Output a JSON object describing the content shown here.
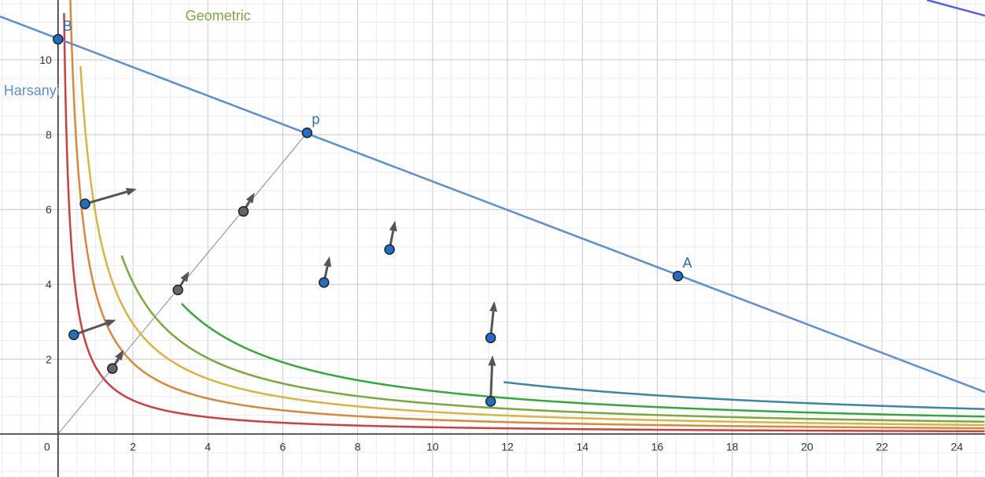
{
  "chart_data": {
    "type": "line",
    "title": "",
    "xlabel": "",
    "ylabel": "",
    "xlim": [
      -1.55,
      24.75
    ],
    "ylim": [
      -1.15,
      11.6
    ],
    "grid": true,
    "x_ticks": [
      0,
      2,
      4,
      6,
      8,
      10,
      12,
      14,
      16,
      18,
      20,
      22,
      24
    ],
    "y_ticks": [
      2,
      4,
      6,
      8,
      10
    ],
    "series": [
      {
        "name": "",
        "kind": "hyperbola",
        "k": 1.8,
        "color": "#d13e3e",
        "x_start": 0.1
      },
      {
        "name": "",
        "kind": "hyperbola",
        "k": 3.8,
        "color": "#d9883a",
        "x_start": 0.1
      },
      {
        "name": "",
        "kind": "hyperbola",
        "k": 5.9,
        "color": "#dbb43d",
        "x_start": 0.6
      },
      {
        "name": "Geometric",
        "kind": "hyperbola",
        "k": 8.1,
        "color": "#7aa93b",
        "x_start": 1.7
      },
      {
        "name": "",
        "kind": "hyperbola",
        "k": 11.5,
        "color": "#35a83c",
        "x_start": 3.3
      },
      {
        "name": "",
        "kind": "hyperbola",
        "k": 16.5,
        "color": "#3a87a6",
        "x_start": 11.9
      },
      {
        "name": "",
        "kind": "line",
        "color": "#5b5ee0",
        "p1": [
          23.2,
          11.6
        ],
        "p2": [
          24.75,
          11.18
        ]
      },
      {
        "name": "Harsanyi",
        "kind": "line",
        "color": "#5b8fcf",
        "p1": [
          -1.55,
          11.16
        ],
        "p2": [
          24.75,
          1.12
        ]
      }
    ],
    "diagonal": {
      "from": [
        0,
        0
      ],
      "to": [
        6.65,
        8.05
      ],
      "color": "#8a8a8a"
    },
    "points": [
      {
        "x": 0,
        "y": 10.55,
        "fill": "#1f6fc4",
        "label": "B"
      },
      {
        "x": 6.65,
        "y": 8.05,
        "fill": "#1f6fc4",
        "label": "p"
      },
      {
        "x": 16.55,
        "y": 4.22,
        "fill": "#1f6fc4",
        "label": "A"
      },
      {
        "x": 0.72,
        "y": 6.15,
        "fill": "#1f6fc4",
        "label": ""
      },
      {
        "x": 0.42,
        "y": 2.65,
        "fill": "#1f6fc4",
        "label": ""
      },
      {
        "x": 7.1,
        "y": 4.05,
        "fill": "#1f6fc4",
        "label": ""
      },
      {
        "x": 8.85,
        "y": 4.93,
        "fill": "#1f6fc4",
        "label": ""
      },
      {
        "x": 11.55,
        "y": 2.57,
        "fill": "#1f6fc4",
        "label": ""
      },
      {
        "x": 11.55,
        "y": 0.87,
        "fill": "#1f6fc4",
        "label": ""
      },
      {
        "x": 1.45,
        "y": 1.75,
        "fill": "#666666",
        "label": ""
      },
      {
        "x": 3.2,
        "y": 3.85,
        "fill": "#666666",
        "label": ""
      },
      {
        "x": 4.95,
        "y": 5.95,
        "fill": "#666666",
        "label": ""
      }
    ],
    "vectors": [
      {
        "from": [
          0.72,
          6.15
        ],
        "to": [
          2.1,
          6.55
        ]
      },
      {
        "from": [
          0.42,
          2.65
        ],
        "to": [
          1.55,
          3.05
        ]
      },
      {
        "from": [
          7.1,
          4.05
        ],
        "to": [
          7.25,
          4.75
        ]
      },
      {
        "from": [
          8.85,
          4.93
        ],
        "to": [
          9.0,
          5.7
        ]
      },
      {
        "from": [
          11.55,
          2.57
        ],
        "to": [
          11.65,
          3.55
        ]
      },
      {
        "from": [
          11.55,
          0.87
        ],
        "to": [
          11.6,
          2.1
        ]
      },
      {
        "from": [
          1.45,
          1.75
        ],
        "to": [
          1.75,
          2.25
        ]
      },
      {
        "from": [
          3.2,
          3.85
        ],
        "to": [
          3.5,
          4.35
        ]
      },
      {
        "from": [
          4.95,
          5.95
        ],
        "to": [
          5.25,
          6.45
        ]
      }
    ],
    "curve_labels": [
      {
        "text": "Geometric",
        "series": "Geometric",
        "x": 3.4,
        "y": 11.05
      },
      {
        "text": "Harsanyi",
        "series": "Harsanyi",
        "x": -1.45,
        "y": 9.05
      }
    ]
  }
}
